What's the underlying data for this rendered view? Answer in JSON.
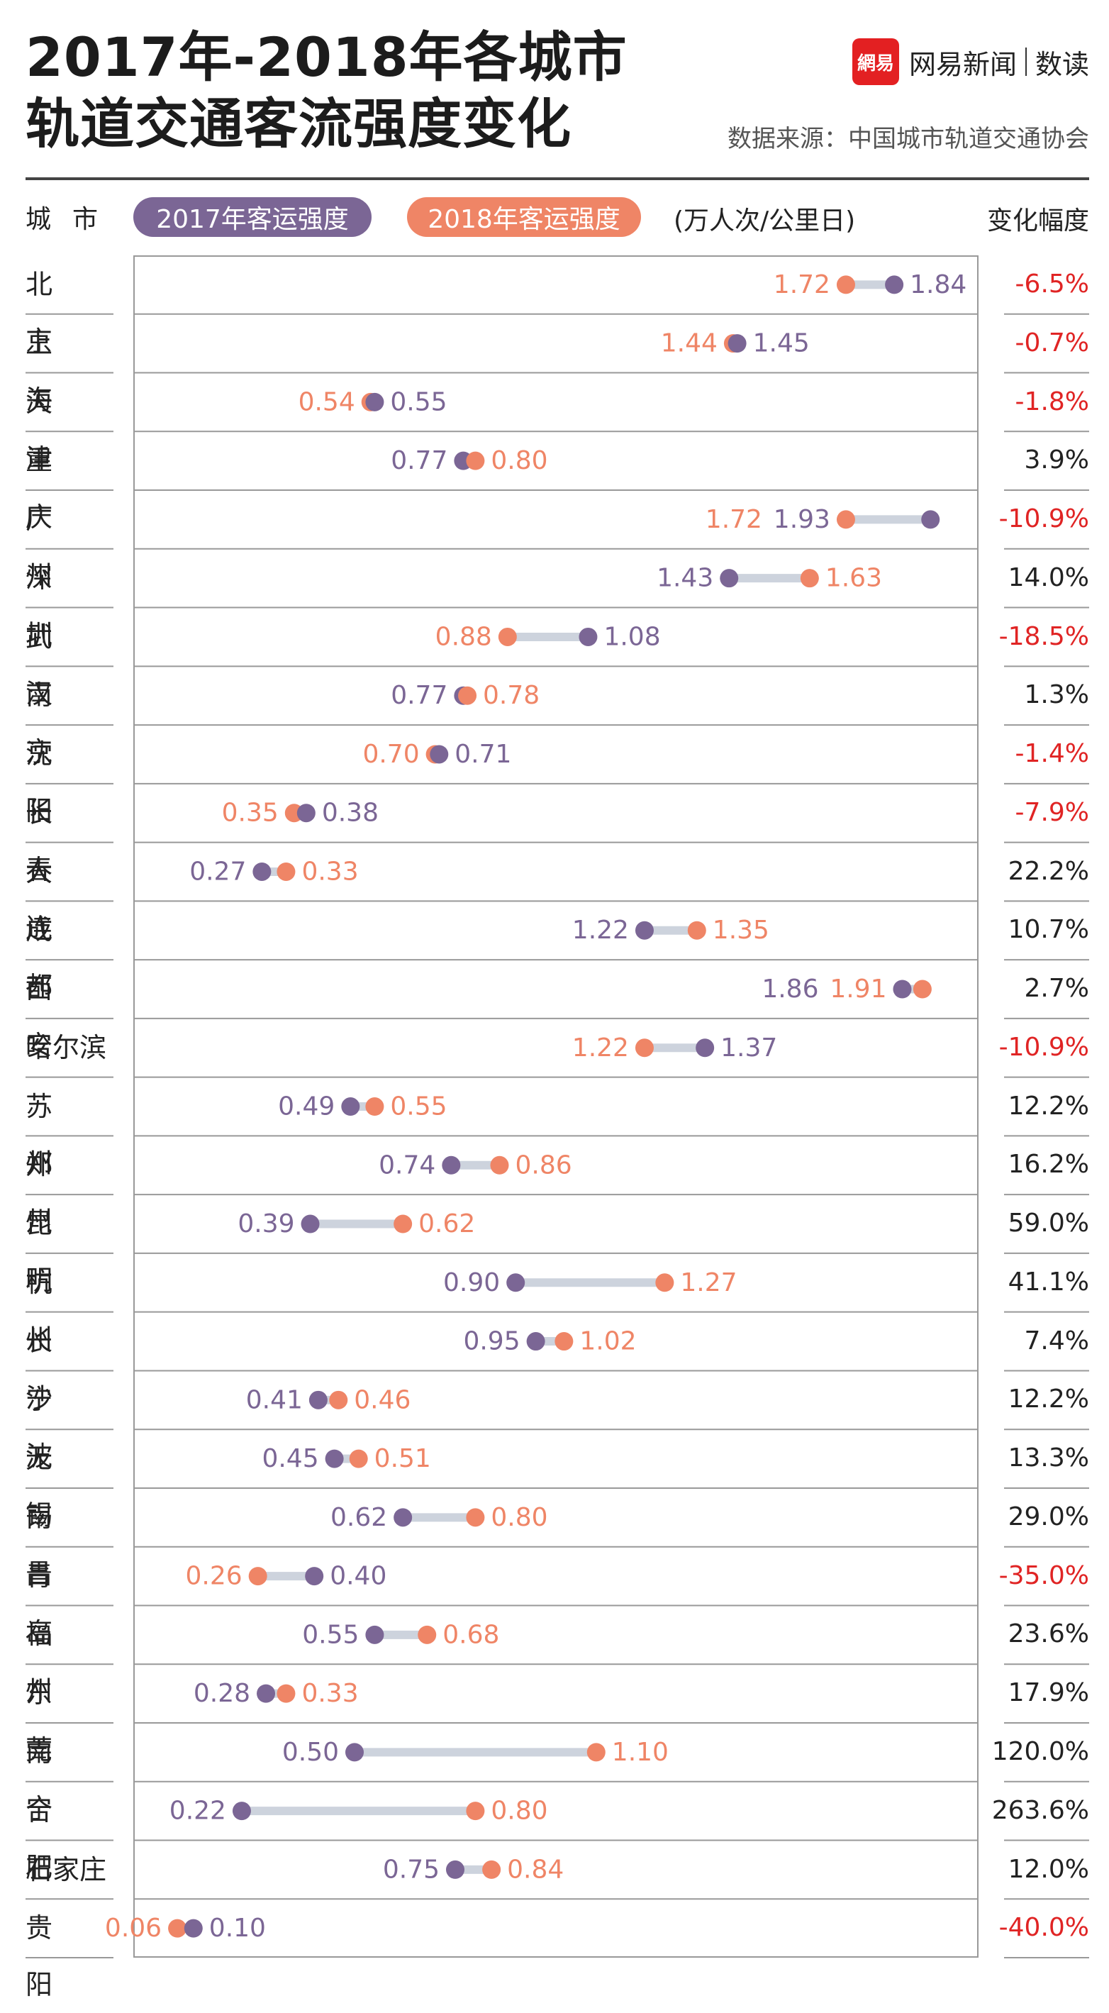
{
  "title": {
    "line1": "2017年-2018年各城市",
    "line2": "轨道交通客流强度变化"
  },
  "brand": {
    "logo_text": "網易",
    "name": "网易新闻",
    "sub": "数读"
  },
  "source": "数据来源：中国城市轨道交通协会",
  "header": {
    "city": "城市",
    "legend_2017": "2017年客运强度",
    "legend_2018": "2018年客运强度",
    "unit": "(万人次/公里日)",
    "change": "变化幅度"
  },
  "colors": {
    "c2017": "#7b6695",
    "c2018": "#ef8566",
    "connector": "#cdd3dd",
    "negative": "#e02424",
    "positive": "#222222",
    "grid": "#999999"
  },
  "chart_data": {
    "type": "dumbbell",
    "xlim": [
      0,
      2.0
    ],
    "series": [
      {
        "name": "2017年客运强度"
      },
      {
        "name": "2018年客运强度"
      }
    ],
    "rows": [
      {
        "city": "北京",
        "v2017": 1.84,
        "v2018": 1.72,
        "change": "-6.5%"
      },
      {
        "city": "上海",
        "v2017": 1.45,
        "v2018": 1.44,
        "change": "-0.7%"
      },
      {
        "city": "天津",
        "v2017": 0.55,
        "v2018": 0.54,
        "change": "-1.8%"
      },
      {
        "city": "重庆",
        "v2017": 0.77,
        "v2018": 0.8,
        "change": "3.9%"
      },
      {
        "city": "广州",
        "v2017": 1.93,
        "v2018": 1.72,
        "change": "-10.9%"
      },
      {
        "city": "深圳",
        "v2017": 1.43,
        "v2018": 1.63,
        "change": "14.0%"
      },
      {
        "city": "武汉",
        "v2017": 1.08,
        "v2018": 0.88,
        "change": "-18.5%"
      },
      {
        "city": "南京",
        "v2017": 0.77,
        "v2018": 0.78,
        "change": "1.3%"
      },
      {
        "city": "沈阳",
        "v2017": 0.71,
        "v2018": 0.7,
        "change": "-1.4%"
      },
      {
        "city": "长春",
        "v2017": 0.38,
        "v2018": 0.35,
        "change": "-7.9%"
      },
      {
        "city": "大连",
        "v2017": 0.27,
        "v2018": 0.33,
        "change": "22.2%"
      },
      {
        "city": "成都",
        "v2017": 1.22,
        "v2018": 1.35,
        "change": "10.7%"
      },
      {
        "city": "西安",
        "v2017": 1.86,
        "v2018": 1.91,
        "change": "2.7%"
      },
      {
        "city": "哈尔滨",
        "v2017": 1.37,
        "v2018": 1.22,
        "change": "-10.9%"
      },
      {
        "city": "苏州",
        "v2017": 0.49,
        "v2018": 0.55,
        "change": "12.2%"
      },
      {
        "city": "郑州",
        "v2017": 0.74,
        "v2018": 0.86,
        "change": "16.2%"
      },
      {
        "city": "昆明",
        "v2017": 0.39,
        "v2018": 0.62,
        "change": "59.0%"
      },
      {
        "city": "杭州",
        "v2017": 0.9,
        "v2018": 1.27,
        "change": "41.1%"
      },
      {
        "city": "长沙",
        "v2017": 0.95,
        "v2018": 1.02,
        "change": "7.4%"
      },
      {
        "city": "宁波",
        "v2017": 0.41,
        "v2018": 0.46,
        "change": "12.2%"
      },
      {
        "city": "无锡",
        "v2017": 0.45,
        "v2018": 0.51,
        "change": "13.3%"
      },
      {
        "city": "南昌",
        "v2017": 0.62,
        "v2018": 0.8,
        "change": "29.0%"
      },
      {
        "city": "青岛",
        "v2017": 0.4,
        "v2018": 0.26,
        "change": "-35.0%"
      },
      {
        "city": "福州",
        "v2017": 0.55,
        "v2018": 0.68,
        "change": "23.6%"
      },
      {
        "city": "东莞",
        "v2017": 0.28,
        "v2018": 0.33,
        "change": "17.9%"
      },
      {
        "city": "南宁",
        "v2017": 0.5,
        "v2018": 1.1,
        "change": "120.0%"
      },
      {
        "city": "合肥",
        "v2017": 0.22,
        "v2018": 0.8,
        "change": "263.6%"
      },
      {
        "city": "石家庄",
        "v2017": 0.75,
        "v2018": 0.84,
        "change": "12.0%"
      },
      {
        "city": "贵阳",
        "v2017": 0.1,
        "v2018": 0.06,
        "change": "-40.0%"
      }
    ]
  }
}
